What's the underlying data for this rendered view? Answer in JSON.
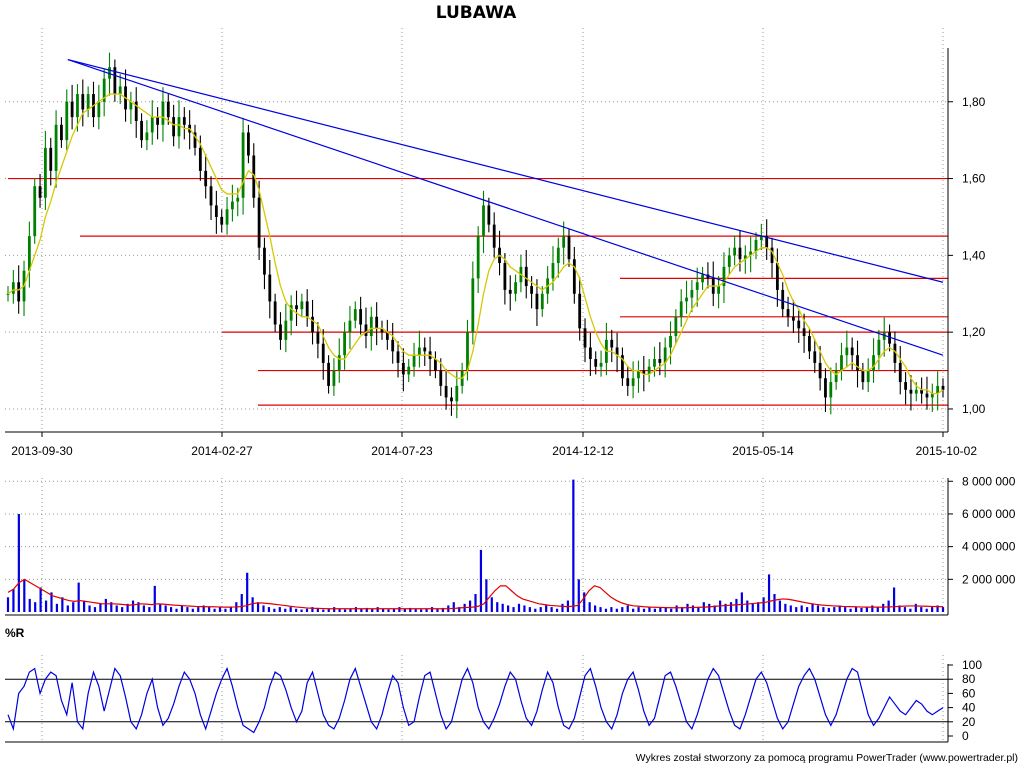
{
  "chart_data": [
    {
      "type": "candlestick",
      "title": "LUBAWA",
      "x_tick_labels": [
        "2013-09-30",
        "2014-02-27",
        "2014-07-23",
        "2014-12-12",
        "2015-05-14",
        "2015-10-02"
      ],
      "y_tick_labels": [
        "1,00",
        "1,20",
        "1,40",
        "1,60",
        "1,80"
      ],
      "ylim": [
        0.94,
        1.94
      ],
      "grid": true,
      "close_series": {
        "name": "",
        "values": [
          1.3,
          1.33,
          1.28,
          1.36,
          1.45,
          1.58,
          1.55,
          1.68,
          1.62,
          1.74,
          1.7,
          1.8,
          1.76,
          1.82,
          1.78,
          1.82,
          1.76,
          1.8,
          1.86,
          1.89,
          1.82,
          1.84,
          1.78,
          1.8,
          1.75,
          1.7,
          1.72,
          1.76,
          1.74,
          1.8,
          1.76,
          1.71,
          1.76,
          1.74,
          1.72,
          1.68,
          1.62,
          1.58,
          1.53,
          1.5,
          1.48,
          1.52,
          1.54,
          1.55,
          1.72,
          1.66,
          1.55,
          1.42,
          1.35,
          1.28,
          1.22,
          1.18,
          1.23,
          1.27,
          1.26,
          1.28,
          1.24,
          1.2,
          1.17,
          1.12,
          1.06,
          1.1,
          1.14,
          1.2,
          1.23,
          1.26,
          1.22,
          1.19,
          1.24,
          1.21,
          1.2,
          1.18,
          1.15,
          1.12,
          1.09,
          1.11,
          1.14,
          1.16,
          1.15,
          1.13,
          1.1,
          1.06,
          1.03,
          1.02,
          1.06,
          1.1,
          1.2,
          1.34,
          1.45,
          1.53,
          1.48,
          1.42,
          1.38,
          1.31,
          1.3,
          1.33,
          1.37,
          1.32,
          1.3,
          1.26,
          1.3,
          1.34,
          1.38,
          1.42,
          1.45,
          1.39,
          1.3,
          1.21,
          1.16,
          1.13,
          1.11,
          1.12,
          1.18,
          1.16,
          1.14,
          1.08,
          1.06,
          1.08,
          1.1,
          1.09,
          1.11,
          1.13,
          1.12,
          1.16,
          1.19,
          1.24,
          1.28,
          1.29,
          1.31,
          1.33,
          1.35,
          1.34,
          1.3,
          1.32,
          1.37,
          1.4,
          1.42,
          1.39,
          1.4,
          1.41,
          1.44,
          1.45,
          1.42,
          1.38,
          1.31,
          1.26,
          1.24,
          1.23,
          1.21,
          1.19,
          1.15,
          1.12,
          1.08,
          1.03,
          1.07,
          1.1,
          1.14,
          1.16,
          1.14,
          1.1,
          1.07,
          1.1,
          1.14,
          1.18,
          1.2,
          1.17,
          1.12,
          1.07,
          1.05,
          1.04,
          1.05,
          1.04,
          1.03,
          1.04,
          1.06,
          1.05
        ]
      },
      "moving_average": {
        "name": "",
        "values": [
          1.3,
          1.31,
          1.31,
          1.32,
          1.36,
          1.4,
          1.44,
          1.5,
          1.54,
          1.59,
          1.63,
          1.67,
          1.71,
          1.74,
          1.77,
          1.78,
          1.79,
          1.8,
          1.81,
          1.82,
          1.82,
          1.82,
          1.81,
          1.8,
          1.79,
          1.78,
          1.77,
          1.76,
          1.76,
          1.76,
          1.75,
          1.74,
          1.74,
          1.73,
          1.73,
          1.71,
          1.69,
          1.66,
          1.63,
          1.6,
          1.57,
          1.56,
          1.56,
          1.56,
          1.59,
          1.62,
          1.61,
          1.57,
          1.51,
          1.45,
          1.38,
          1.32,
          1.28,
          1.26,
          1.25,
          1.24,
          1.24,
          1.23,
          1.22,
          1.19,
          1.16,
          1.14,
          1.13,
          1.13,
          1.15,
          1.17,
          1.19,
          1.2,
          1.21,
          1.21,
          1.21,
          1.2,
          1.19,
          1.17,
          1.15,
          1.14,
          1.14,
          1.14,
          1.14,
          1.14,
          1.13,
          1.12,
          1.1,
          1.09,
          1.08,
          1.08,
          1.1,
          1.15,
          1.22,
          1.3,
          1.36,
          1.39,
          1.4,
          1.39,
          1.37,
          1.36,
          1.35,
          1.34,
          1.33,
          1.32,
          1.31,
          1.32,
          1.33,
          1.35,
          1.37,
          1.38,
          1.37,
          1.34,
          1.29,
          1.24,
          1.2,
          1.17,
          1.15,
          1.15,
          1.14,
          1.13,
          1.11,
          1.1,
          1.1,
          1.09,
          1.09,
          1.1,
          1.11,
          1.12,
          1.14,
          1.17,
          1.2,
          1.23,
          1.26,
          1.28,
          1.3,
          1.32,
          1.32,
          1.32,
          1.33,
          1.35,
          1.37,
          1.38,
          1.39,
          1.4,
          1.41,
          1.42,
          1.42,
          1.41,
          1.38,
          1.35,
          1.31,
          1.28,
          1.26,
          1.23,
          1.21,
          1.18,
          1.15,
          1.12,
          1.1,
          1.09,
          1.1,
          1.11,
          1.12,
          1.11,
          1.1,
          1.1,
          1.11,
          1.13,
          1.15,
          1.16,
          1.15,
          1.13,
          1.11,
          1.08,
          1.06,
          1.05,
          1.05,
          1.04,
          1.04,
          1.05
        ]
      },
      "horizontal_levels": [
        1.6,
        1.45,
        1.34,
        1.24,
        1.2,
        1.1,
        1.01
      ],
      "trend_lines": [
        {
          "from": {
            "x": "2013-10-21",
            "y": 1.91
          },
          "to": {
            "x": "2015-10-02",
            "y": 1.33
          }
        },
        {
          "from": {
            "x": "2013-10-21",
            "y": 1.91
          },
          "to": {
            "x": "2015-10-02",
            "y": 1.14
          }
        }
      ],
      "colors": {
        "candle": "#000000",
        "up_candle": "#008000",
        "moving_average": "#d8c800",
        "levels": "#e00000",
        "trend_lines": "#0000e0"
      }
    },
    {
      "type": "bar",
      "title": "",
      "y_tick_labels": [
        "2 000 000",
        "4 000 000",
        "6 000 000",
        "8 000 000"
      ],
      "ylim": [
        0,
        8200000
      ],
      "grid": true,
      "series": [
        {
          "name": "",
          "values": [
            900000,
            1400000,
            6000000,
            2000000,
            800000,
            600000,
            1500000,
            700000,
            1200000,
            500000,
            900000,
            400000,
            600000,
            1800000,
            700000,
            400000,
            300000,
            500000,
            800000,
            600000,
            400000,
            300000,
            500000,
            700000,
            600000,
            400000,
            300000,
            1600000,
            500000,
            400000,
            300000,
            200000,
            400000,
            300000,
            200000,
            300000,
            400000,
            300000,
            200000,
            300000,
            200000,
            300000,
            600000,
            1100000,
            2400000,
            900000,
            600000,
            400000,
            300000,
            200000,
            300000,
            200000,
            300000,
            200000,
            150000,
            200000,
            300000,
            200000,
            150000,
            200000,
            300000,
            200000,
            150000,
            200000,
            300000,
            200000,
            250000,
            200000,
            300000,
            200000,
            150000,
            200000,
            300000,
            200000,
            250000,
            200000,
            150000,
            200000,
            300000,
            200000,
            250000,
            400000,
            600000,
            300000,
            500000,
            700000,
            1100000,
            3800000,
            2000000,
            900000,
            600000,
            500000,
            400000,
            300000,
            500000,
            400000,
            300000,
            200000,
            300000,
            400000,
            300000,
            200000,
            500000,
            700000,
            8100000,
            2000000,
            1200000,
            600000,
            400000,
            300000,
            200000,
            300000,
            200000,
            300000,
            400000,
            200000,
            300000,
            200000,
            300000,
            200000,
            250000,
            300000,
            200000,
            400000,
            300000,
            500000,
            400000,
            300000,
            600000,
            500000,
            400000,
            700000,
            500000,
            600000,
            800000,
            1200000,
            700000,
            500000,
            600000,
            900000,
            2300000,
            1100000,
            700000,
            500000,
            400000,
            300000,
            400000,
            300000,
            500000,
            400000,
            300000,
            250000,
            300000,
            400000,
            300000,
            200000,
            300000,
            250000,
            300000,
            400000,
            300000,
            500000,
            700000,
            1500000,
            400000,
            300000,
            200000,
            500000,
            300000,
            200000,
            300000,
            400000,
            300000
          ]
        },
        {
          "name": "",
          "values": [
            1200000,
            1400000,
            1800000,
            2000000,
            1800000,
            1600000,
            1400000,
            1200000,
            1000000,
            900000,
            800000,
            700000,
            650000,
            700000,
            650000,
            600000,
            550000,
            500000,
            500000,
            500000,
            480000,
            450000,
            420000,
            450000,
            500000,
            480000,
            450000,
            500000,
            480000,
            450000,
            420000,
            400000,
            380000,
            360000,
            340000,
            330000,
            320000,
            320000,
            310000,
            300000,
            300000,
            310000,
            330000,
            380000,
            500000,
            550000,
            550000,
            520000,
            480000,
            440000,
            400000,
            350000,
            310000,
            280000,
            250000,
            230000,
            220000,
            210000,
            200000,
            200000,
            200000,
            200000,
            200000,
            200000,
            200000,
            200000,
            200000,
            200000,
            200000,
            200000,
            200000,
            200000,
            200000,
            200000,
            200000,
            200000,
            200000,
            200000,
            200000,
            200000,
            210000,
            230000,
            260000,
            280000,
            300000,
            350000,
            500000,
            900000,
            1300000,
            1600000,
            1600000,
            1300000,
            1000000,
            800000,
            700000,
            600000,
            500000,
            450000,
            400000,
            380000,
            350000,
            330000,
            350000,
            400000,
            800000,
            1300000,
            1600000,
            1500000,
            1200000,
            900000,
            700000,
            550000,
            450000,
            380000,
            350000,
            320000,
            300000,
            290000,
            280000,
            270000,
            260000,
            260000,
            260000,
            270000,
            280000,
            290000,
            300000,
            320000,
            350000,
            380000,
            400000,
            430000,
            450000,
            470000,
            500000,
            530000,
            560000,
            600000,
            680000,
            750000,
            800000,
            780000,
            720000,
            650000,
            580000,
            520000,
            470000,
            430000,
            400000,
            380000,
            360000,
            340000,
            330000,
            320000,
            310000,
            300000,
            300000,
            300000,
            300000,
            310000,
            320000,
            340000,
            360000,
            370000,
            370000,
            360000,
            350000,
            340000,
            330000,
            320000
          ]
        }
      ],
      "colors": {
        "volume": "#0000e0",
        "volume_average": "#e00000"
      }
    },
    {
      "type": "line",
      "title": "%R",
      "y_tick_labels": [
        "0",
        "20",
        "40",
        "60",
        "80",
        "100"
      ],
      "ylim": [
        0,
        100
      ],
      "reference_lines": [
        20,
        80
      ],
      "series": [
        {
          "name": "",
          "values": [
            30,
            10,
            60,
            70,
            90,
            95,
            60,
            80,
            90,
            85,
            50,
            30,
            75,
            20,
            10,
            60,
            90,
            70,
            35,
            65,
            95,
            85,
            55,
            20,
            10,
            30,
            60,
            80,
            40,
            15,
            25,
            45,
            70,
            90,
            80,
            60,
            30,
            10,
            35,
            60,
            80,
            95,
            70,
            40,
            15,
            10,
            5,
            20,
            40,
            70,
            90,
            85,
            65,
            40,
            20,
            35,
            75,
            90,
            60,
            30,
            15,
            10,
            25,
            50,
            80,
            95,
            70,
            45,
            20,
            10,
            30,
            60,
            85,
            75,
            40,
            15,
            20,
            55,
            85,
            90,
            60,
            30,
            10,
            20,
            50,
            80,
            95,
            75,
            40,
            20,
            10,
            25,
            45,
            70,
            90,
            80,
            50,
            25,
            15,
            35,
            65,
            90,
            75,
            40,
            15,
            10,
            25,
            55,
            85,
            95,
            70,
            40,
            20,
            10,
            30,
            60,
            80,
            90,
            65,
            35,
            15,
            25,
            55,
            85,
            90,
            70,
            45,
            20,
            10,
            30,
            55,
            80,
            95,
            85,
            60,
            35,
            15,
            10,
            30,
            55,
            80,
            90,
            75,
            50,
            25,
            10,
            20,
            45,
            70,
            85,
            95,
            80,
            55,
            30,
            15,
            30,
            55,
            80,
            95,
            90,
            60,
            30,
            15,
            25,
            40,
            55,
            45,
            35,
            30,
            40,
            50,
            45,
            35,
            30,
            35,
            40
          ]
        }
      ],
      "colors": {
        "line": "#0000e0",
        "reference": "#000000"
      }
    }
  ],
  "footer": {
    "credit": "Wykres został stworzony za pomocą programu PowerTrader (www.powertrader.pl)"
  }
}
